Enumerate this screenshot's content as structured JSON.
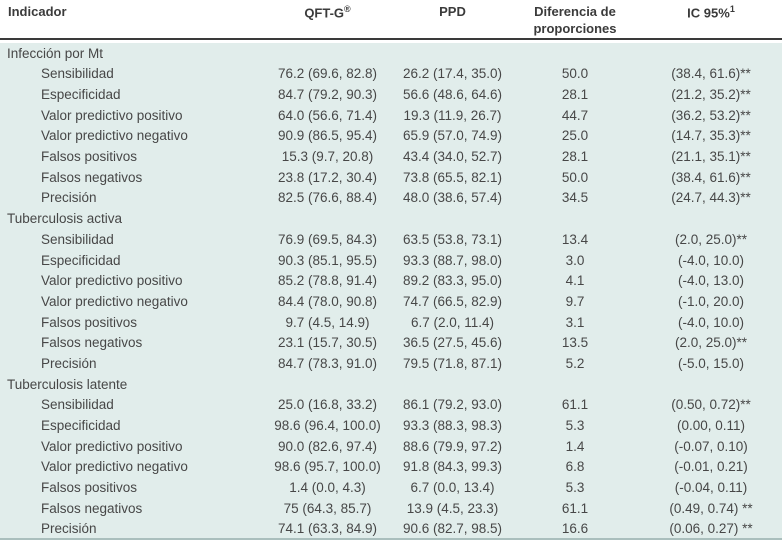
{
  "table": {
    "columns": [
      {
        "label": "Indicador"
      },
      {
        "label": "QFT-G",
        "sup": "®"
      },
      {
        "label": "PPD"
      },
      {
        "label": "Diferencia de proporciones"
      },
      {
        "label": "IC 95%",
        "sup": "1"
      }
    ],
    "sections": [
      {
        "title": "Infección por Mt",
        "rows": [
          {
            "indicator": "Sensibilidad",
            "qft": "76.2 (69.6, 82.8)",
            "ppd": "26.2 (17.4, 35.0)",
            "diff": "50.0",
            "ci": "(38.4, 61.6)**"
          },
          {
            "indicator": "Especificidad",
            "qft": "84.7 (79.2, 90.3)",
            "ppd": "56.6 (48.6, 64.6)",
            "diff": "28.1",
            "ci": "(21.2, 35.2)**"
          },
          {
            "indicator": "Valor predictivo positivo",
            "qft": "64.0 (56.6, 71.4)",
            "ppd": "19.3 (11.9, 26.7)",
            "diff": "44.7",
            "ci": "(36.2, 53.2)**"
          },
          {
            "indicator": "Valor predictivo negativo",
            "qft": "90.9 (86.5, 95.4)",
            "ppd": "65.9 (57.0, 74.9)",
            "diff": "25.0",
            "ci": "(14.7, 35.3)**"
          },
          {
            "indicator": "Falsos positivos",
            "qft": "15.3 (9.7, 20.8)",
            "ppd": "43.4 (34.0, 52.7)",
            "diff": "28.1",
            "ci": "(21.1, 35.1)**"
          },
          {
            "indicator": "Falsos negativos",
            "qft": "23.8 (17.2, 30.4)",
            "ppd": "73.8 (65.5, 82.1)",
            "diff": "50.0",
            "ci": "(38.4, 61.6)**"
          },
          {
            "indicator": "Precisión",
            "qft": "82.5 (76.6, 88.4)",
            "ppd": "48.0 (38.6, 57.4)",
            "diff": "34.5",
            "ci": "(24.7, 44.3)**"
          }
        ]
      },
      {
        "title": "Tuberculosis activa",
        "rows": [
          {
            "indicator": "Sensibilidad",
            "qft": "76.9 (69.5, 84.3)",
            "ppd": "63.5 (53.8, 73.1)",
            "diff": "13.4",
            "ci": "(2.0, 25.0)**"
          },
          {
            "indicator": "Especificidad",
            "qft": "90.3 (85.1, 95.5)",
            "ppd": "93.3 (88.7, 98.0)",
            "diff": "3.0",
            "ci": "(-4.0, 10.0)"
          },
          {
            "indicator": "Valor predictivo positivo",
            "qft": "85.2 (78.8, 91.4)",
            "ppd": "89.2 (83.3, 95.0)",
            "diff": "4.1",
            "ci": "(-4.0, 13.0)"
          },
          {
            "indicator": "Valor predictivo negativo",
            "qft": "84.4 (78.0, 90.8)",
            "ppd": "74.7 (66.5, 82.9)",
            "diff": "9.7",
            "ci": "(-1.0, 20.0)"
          },
          {
            "indicator": "Falsos positivos",
            "qft": "9.7 (4.5, 14.9)",
            "ppd": "6.7 (2.0, 11.4)",
            "diff": "3.1",
            "ci": "(-4.0, 10.0)"
          },
          {
            "indicator": "Falsos negativos",
            "qft": "23.1 (15.7, 30.5)",
            "ppd": "36.5 (27.5, 45.6)",
            "diff": "13.5",
            "ci": "(2.0, 25.0)**"
          },
          {
            "indicator": "Precisión",
            "qft": "84.7 (78.3, 91.0)",
            "ppd": "79.5 (71.8, 87.1)",
            "diff": "5.2",
            "ci": "(-5.0, 15.0)"
          }
        ]
      },
      {
        "title": "Tuberculosis latente",
        "rows": [
          {
            "indicator": "Sensibilidad",
            "qft": "25.0 (16.8, 33.2)",
            "ppd": "86.1 (79.2, 93.0)",
            "diff": "61.1",
            "ci": "(0.50, 0.72)**"
          },
          {
            "indicator": "Especificidad",
            "qft": "98.6 (96.4, 100.0)",
            "ppd": "93.3 (88.3, 98.3)",
            "diff": "5.3",
            "ci": "(0.00, 0.11)"
          },
          {
            "indicator": "Valor predictivo positivo",
            "qft": "90.0 (82.6, 97.4)",
            "ppd": "88.6 (79.9, 97.2)",
            "diff": "1.4",
            "ci": "(-0.07, 0.10)"
          },
          {
            "indicator": "Valor predictivo negativo",
            "qft": "98.6 (95.7, 100.0)",
            "ppd": "91.8 (84.3, 99.3)",
            "diff": "6.8",
            "ci": "(-0.01, 0.21)"
          },
          {
            "indicator": "Falsos positivos",
            "qft": "1.4 (0.0, 4.3)",
            "ppd": "6.7 (0.0, 13.4)",
            "diff": "5.3",
            "ci": "(-0.04, 0.11)"
          },
          {
            "indicator": "Falsos negativos",
            "qft": "75 (64.3, 85.7)",
            "ppd": "13.9 (4.5, 23.3)",
            "diff": "61.1",
            "ci": "(0.49, 0.74) **"
          },
          {
            "indicator": "Precisión",
            "qft": "74.1 (63.3, 84.9)",
            "ppd": "90.6 (82.7, 98.5)",
            "diff": "16.6",
            "ci": "(0.06, 0.27) **"
          }
        ]
      }
    ]
  },
  "colors": {
    "body_background": "#e1edeb",
    "header_rule": "#3a3a3a",
    "header_text": "#3b3b3b",
    "body_text": "#474747",
    "bottom_rule": "#aabfbd"
  }
}
